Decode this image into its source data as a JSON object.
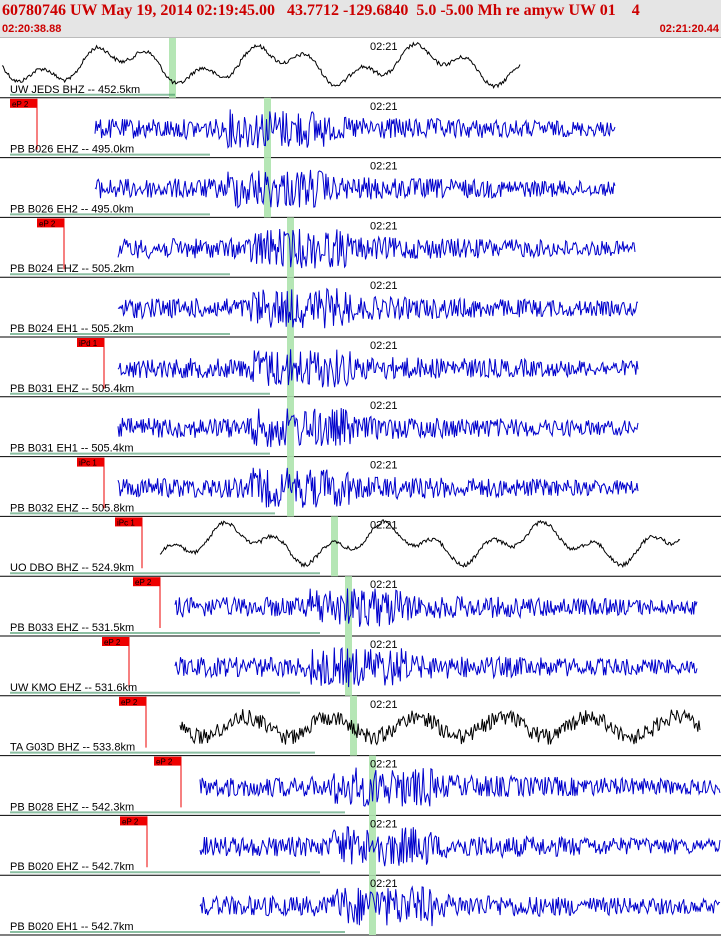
{
  "header": {
    "title": "60780746 UW May 19, 2014 02:19:45.00   43.7712 -129.6840  5.0 -5.00 Mh re amyw UW 01    4",
    "time_start": "02:20:38.88",
    "time_end": "02:21:20.44"
  },
  "colors": {
    "trace_blue": "#0000cc",
    "trace_black": "#000000",
    "pick_red": "#ee0000",
    "marker_green": "#b5e6b5",
    "header_red": "#cc0000"
  },
  "traces": [
    {
      "label": "UW JEDS BHZ -- 452.5km",
      "minute_label": "02:21",
      "pick": "",
      "color": "black",
      "kind": "long"
    },
    {
      "label": "PB B026 EHZ -- 495.0km",
      "minute_label": "02:21",
      "pick": "eP 2",
      "color": "blue",
      "kind": "short"
    },
    {
      "label": "PB B026 EH2 -- 495.0km",
      "minute_label": "02:21",
      "pick": "",
      "color": "blue",
      "kind": "short"
    },
    {
      "label": "PB B024 EHZ -- 505.2km",
      "minute_label": "02:21",
      "pick": "eP 2",
      "color": "blue",
      "kind": "short"
    },
    {
      "label": "PB B024 EH1 -- 505.2km",
      "minute_label": "02:21",
      "pick": "",
      "color": "blue",
      "kind": "short"
    },
    {
      "label": "PB B031 EHZ -- 505.4km",
      "minute_label": "02:21",
      "pick": "iPd 1",
      "color": "blue",
      "kind": "short"
    },
    {
      "label": "PB B031 EH1 -- 505.4km",
      "minute_label": "02:21",
      "pick": "",
      "color": "blue",
      "kind": "short"
    },
    {
      "label": "PB B032 EHZ -- 505.8km",
      "minute_label": "02:21",
      "pick": "iPc 1",
      "color": "blue",
      "kind": "short"
    },
    {
      "label": "UO DBO BHZ -- 524.9km",
      "minute_label": "02:21",
      "pick": "iPc 1",
      "color": "black",
      "kind": "long"
    },
    {
      "label": "PB B033 EHZ -- 531.5km",
      "minute_label": "02:21",
      "pick": "eP 2",
      "color": "blue",
      "kind": "short"
    },
    {
      "label": "UW KMO EHZ -- 531.6km",
      "minute_label": "02:21",
      "pick": "eP 2",
      "color": "blue",
      "kind": "short"
    },
    {
      "label": "TA G03D BHZ -- 533.8km",
      "minute_label": "02:21",
      "pick": "eP 2",
      "color": "black",
      "kind": "mixed"
    },
    {
      "label": "PB B028 EHZ -- 542.3km",
      "minute_label": "02:21",
      "pick": "eP 2",
      "color": "blue",
      "kind": "short"
    },
    {
      "label": "PB B020 EHZ -- 542.7km",
      "minute_label": "02:21",
      "pick": "eP 2",
      "color": "blue",
      "kind": "short"
    },
    {
      "label": "PB B020 EH1 -- 542.7km",
      "minute_label": "02:21",
      "pick": "",
      "color": "blue",
      "kind": "short"
    }
  ]
}
